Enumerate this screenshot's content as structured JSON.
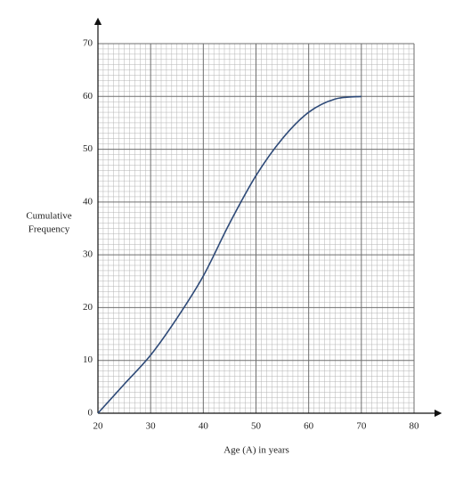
{
  "chart_data": {
    "type": "line",
    "ylabel": [
      "Cumulative",
      "Frequency"
    ],
    "xlabel": "Age (A) in years",
    "x": [
      20,
      25,
      30,
      35,
      40,
      45,
      50,
      55,
      60,
      65,
      70
    ],
    "series": [
      {
        "color": "#2e4a78",
        "values": [
          0,
          5.5,
          11,
          18,
          26,
          36,
          45,
          52,
          57,
          59.5,
          60
        ]
      }
    ],
    "xlim": [
      20,
      80
    ],
    "ylim": [
      0,
      70
    ],
    "xticks": [
      20,
      30,
      40,
      50,
      60,
      70,
      80
    ],
    "yticks": [
      0,
      10,
      20,
      30,
      40,
      50,
      60,
      70
    ],
    "grid": true,
    "minor_grid": true,
    "smooth": true
  }
}
